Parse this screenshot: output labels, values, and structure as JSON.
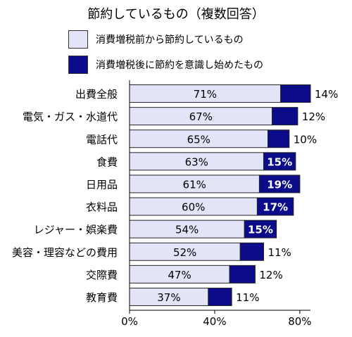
{
  "chart_data": {
    "type": "bar",
    "stacked": true,
    "orientation": "horizontal",
    "title": "節約しているもの（複数回答）",
    "categories": [
      "出費全般",
      "電気・ガス・水道代",
      "電話代",
      "食費",
      "日用品",
      "衣料品",
      "レジャー・娯楽費",
      "美容・理容などの費用",
      "交際費",
      "教育費"
    ],
    "series": [
      {
        "name": "消費増税前から節約しているもの",
        "values": [
          71,
          67,
          65,
          63,
          61,
          60,
          54,
          52,
          47,
          37
        ],
        "labels": [
          "71%",
          "67%",
          "65%",
          "63%",
          "61%",
          "60%",
          "54%",
          "52%",
          "47%",
          "37%"
        ],
        "color": "#e4e4f8"
      },
      {
        "name": "消費増税後に節約を意識し始めたもの",
        "values": [
          14,
          12,
          10,
          15,
          19,
          17,
          15,
          11,
          12,
          11
        ],
        "labels": [
          "14%",
          "12%",
          "10%",
          "15%",
          "19%",
          "17%",
          "15%",
          "11%",
          "12%",
          "11%"
        ],
        "label_inside": [
          false,
          false,
          false,
          true,
          true,
          true,
          true,
          false,
          false,
          false
        ],
        "color": "#0c0c8a"
      }
    ],
    "xlim": [
      0,
      85
    ],
    "xticks": [
      0,
      40,
      80
    ],
    "xtick_labels": [
      "0%",
      "40%",
      "80%"
    ],
    "grid": false,
    "legend_position": "top"
  }
}
